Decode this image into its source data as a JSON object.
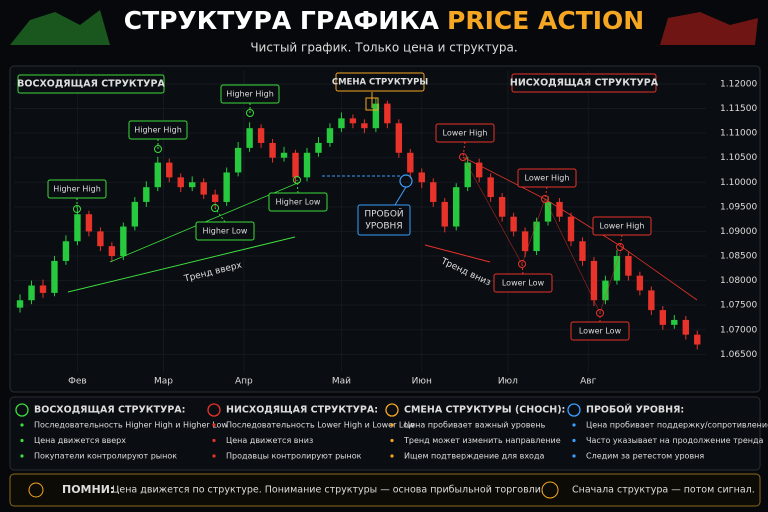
{
  "header": {
    "title": "СТРУКТУРА ГРАФИКА",
    "title_highlight": "PRICE ACTION",
    "subtitle": "Чистый график. Только цена и структура."
  },
  "chart_data": {
    "type": "candlestick",
    "up_color": "#27c93f",
    "down_color": "#e8332b",
    "grid": true,
    "xlim": [
      -0.5,
      59.5
    ],
    "xticks": [
      {
        "value": 5,
        "label": "Фев"
      },
      {
        "value": 12.5,
        "label": "Мар"
      },
      {
        "value": 19.5,
        "label": "Апр"
      },
      {
        "value": 28,
        "label": "Май"
      },
      {
        "value": 35,
        "label": "Июн"
      },
      {
        "value": 42.5,
        "label": "Июл"
      },
      {
        "value": 49.5,
        "label": "Авг"
      }
    ],
    "ylim": [
      1.061,
      1.123
    ],
    "yticks": [
      {
        "value": 1.12,
        "label": "1.12000"
      },
      {
        "value": 1.115,
        "label": "1.11500"
      },
      {
        "value": 1.11,
        "label": "1.11000"
      },
      {
        "value": 1.105,
        "label": "1.10500"
      },
      {
        "value": 1.1,
        "label": "1.10000"
      },
      {
        "value": 1.095,
        "label": "1.09500"
      },
      {
        "value": 1.09,
        "label": "1.09000"
      },
      {
        "value": 1.085,
        "label": "1.08500"
      },
      {
        "value": 1.08,
        "label": "1.08000"
      },
      {
        "value": 1.075,
        "label": "1.07500"
      },
      {
        "value": 1.07,
        "label": "1.07000"
      },
      {
        "value": 1.065,
        "label": "1.06500"
      }
    ],
    "open": [
      1.0745,
      1.076,
      1.079,
      1.0775,
      1.084,
      1.088,
      1.0935,
      1.09,
      1.087,
      1.085,
      1.091,
      1.096,
      1.099,
      1.104,
      1.101,
      1.099,
      1.1,
      1.0975,
      1.096,
      1.102,
      1.107,
      1.111,
      1.108,
      1.105,
      1.106,
      1.101,
      1.106,
      1.108,
      1.111,
      1.113,
      1.112,
      1.111,
      1.116,
      1.112,
      1.106,
      1.102,
      1.1,
      1.096,
      1.091,
      1.099,
      1.104,
      1.101,
      1.097,
      1.093,
      1.09,
      1.086,
      1.092,
      1.096,
      1.093,
      1.088,
      1.084,
      1.076,
      1.08,
      1.085,
      1.081,
      1.078,
      1.074,
      1.071,
      1.072,
      1.069
    ],
    "high": [
      1.0772,
      1.08,
      1.0802,
      1.085,
      1.0892,
      1.0948,
      1.0942,
      1.0908,
      1.0878,
      1.0918,
      1.097,
      1.1002,
      1.1052,
      1.1048,
      1.1018,
      1.1012,
      1.1008,
      1.0985,
      1.103,
      1.1082,
      1.1122,
      1.1118,
      1.1088,
      1.1072,
      1.1066,
      1.107,
      1.1092,
      1.112,
      1.1142,
      1.1138,
      1.1128,
      1.1172,
      1.1166,
      1.1128,
      1.1068,
      1.1028,
      1.1008,
      1.0968,
      1.0998,
      1.1052,
      1.1048,
      1.1018,
      1.0978,
      1.0938,
      1.0908,
      1.0928,
      1.0972,
      1.0968,
      1.0938,
      1.0888,
      1.0848,
      1.081,
      1.0862,
      1.0858,
      1.0818,
      1.0788,
      1.0748,
      1.073,
      1.0728,
      1.0698
    ],
    "low": [
      1.0735,
      1.0752,
      1.0765,
      1.0768,
      1.0832,
      1.0872,
      1.089,
      1.086,
      1.0838,
      1.0842,
      1.0902,
      1.095,
      1.0982,
      1.1,
      1.098,
      1.0982,
      1.0966,
      1.0948,
      1.0952,
      1.1012,
      1.1062,
      1.107,
      1.104,
      1.1042,
      1.0998,
      1.1002,
      1.1052,
      1.1072,
      1.1102,
      1.111,
      1.11,
      1.1102,
      1.111,
      1.105,
      1.1008,
      1.0988,
      1.095,
      1.0898,
      1.0902,
      1.0982,
      1.1,
      1.096,
      1.092,
      1.089,
      1.0848,
      1.0852,
      1.0912,
      1.092,
      1.087,
      1.083,
      1.0748,
      1.0752,
      1.0792,
      1.08,
      1.077,
      1.073,
      1.07,
      1.0702,
      1.068,
      1.066
    ],
    "close": [
      1.076,
      1.079,
      1.0775,
      1.084,
      1.088,
      1.0935,
      1.09,
      1.087,
      1.085,
      1.091,
      1.096,
      1.099,
      1.104,
      1.101,
      1.099,
      1.1,
      1.0975,
      1.096,
      1.102,
      1.107,
      1.111,
      1.108,
      1.105,
      1.106,
      1.101,
      1.106,
      1.108,
      1.111,
      1.113,
      1.112,
      1.111,
      1.116,
      1.112,
      1.106,
      1.102,
      1.1,
      1.096,
      1.091,
      1.099,
      1.104,
      1.101,
      1.097,
      1.093,
      1.09,
      1.086,
      1.092,
      1.096,
      1.093,
      1.088,
      1.084,
      1.076,
      1.08,
      1.085,
      1.081,
      1.078,
      1.074,
      1.071,
      1.072,
      1.069,
      1.067
    ],
    "annotations": {
      "uptrend_box": "ВОСХОДЯЩАЯ СТРУКТУРА",
      "change_box": "СМЕНА СТРУКТУРЫ",
      "downtrend_box": "НИСХОДЯЩАЯ СТРУКТУРА",
      "higher_high": [
        "Higher High",
        "Higher High",
        "Higher High"
      ],
      "higher_low": [
        "Higher Low",
        "Higher Low"
      ],
      "lower_high": [
        "Lower High",
        "Lower High",
        "Lower High"
      ],
      "lower_low": [
        "Lower Low",
        "Lower Low"
      ],
      "breakout": [
        "ПРОБОЙ",
        "УРОВНЯ"
      ],
      "trend_up": "Тренд вверх",
      "trend_down": "Тренд вниз"
    }
  },
  "notes": [
    {
      "heading": "ВОСХОДЯЩАЯ СТРУКТУРА:",
      "items": [
        "Последовательность Higher High и Higher Low",
        "Цена движется вверх",
        "Покупатели контролируют рынок"
      ]
    },
    {
      "heading": "НИСХОДЯЩАЯ СТРУКТУРА:",
      "items": [
        "Последовательность Lower High и Lower Low",
        "Цена движется вниз",
        "Продавцы контролируют рынок"
      ]
    },
    {
      "heading": "СМЕНА СТРУКТУРЫ (CHOCH):",
      "items": [
        "Цена пробивает важный уровень",
        "Тренд может изменить направление",
        "Ищем подтверждение для входа"
      ]
    },
    {
      "heading": "ПРОБОЙ УРОВНЯ:",
      "items": [
        "Цена пробивает поддержку/сопротивление",
        "Часто указывает на продолжение тренда",
        "Следим за ретестом уровня"
      ]
    }
  ],
  "footer": {
    "label": "ПОМНИ:",
    "text": "Цена движется по структуре. Понимание структуры — основа прибыльной торговли.",
    "right": "Сначала структура — потом сигнал."
  }
}
